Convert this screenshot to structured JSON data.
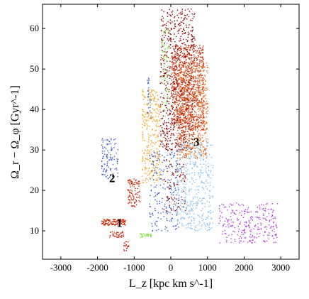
{
  "chart_data": {
    "type": "scatter",
    "title": "",
    "xlabel": "L_z [kpc km s^-1]",
    "ylabel": "Ω_r − Ω_φ [Gyr^-1]",
    "xlim": [
      -3500,
      3500
    ],
    "ylim": [
      3,
      66
    ],
    "xticks": [
      -3000,
      -2000,
      -1000,
      0,
      1000,
      2000,
      3000
    ],
    "yticks": [
      10,
      20,
      30,
      40,
      50,
      60
    ],
    "grid": false,
    "legend": "none",
    "annotations": [
      {
        "text": "1",
        "x": -1400,
        "y": 11
      },
      {
        "text": "2",
        "x": -1600,
        "y": 22
      },
      {
        "text": "3",
        "x": 700,
        "y": 31
      }
    ],
    "series": [
      {
        "color": "#8b0000",
        "clusters": [
          {
            "x": [
              -300,
              650
            ],
            "y": [
              30,
              65
            ],
            "n": 700
          },
          {
            "x": [
              -200,
              400
            ],
            "y": [
              15,
              40
            ],
            "n": 150
          }
        ]
      },
      {
        "color": "#cc2200",
        "clusters": [
          {
            "x": [
              0,
              900
            ],
            "y": [
              35,
              56
            ],
            "n": 700
          },
          {
            "x": [
              -1200,
              -850
            ],
            "y": [
              16,
              23
            ],
            "n": 100
          },
          {
            "x": [
              -1900,
              -1250
            ],
            "y": [
              11.5,
              13
            ],
            "n": 120
          },
          {
            "x": [
              -1700,
              -1300
            ],
            "y": [
              8.5,
              10
            ],
            "n": 40
          },
          {
            "x": [
              -1300,
              -1150
            ],
            "y": [
              4.5,
              7.5
            ],
            "n": 20
          }
        ]
      },
      {
        "color": "#ee6a1a",
        "clusters": [
          {
            "x": [
              150,
              1000
            ],
            "y": [
              28,
              52
            ],
            "n": 600
          }
        ]
      },
      {
        "color": "#f5a020",
        "clusters": [
          {
            "x": [
              -800,
              -300
            ],
            "y": [
              22,
              45
            ],
            "n": 300
          }
        ]
      },
      {
        "color": "#3a5ccc",
        "clusters": [
          {
            "x": [
              -1900,
              -1450
            ],
            "y": [
              23,
              33
            ],
            "n": 110
          },
          {
            "x": [
              -600,
              200
            ],
            "y": [
              10,
              30
            ],
            "n": 200
          },
          {
            "x": [
              -650,
              -550
            ],
            "y": [
              38,
              48
            ],
            "n": 25
          }
        ]
      },
      {
        "color": "#7fbff5",
        "clusters": [
          {
            "x": [
              150,
              1150
            ],
            "y": [
              10,
              32
            ],
            "n": 400
          }
        ]
      },
      {
        "color": "#b23adf",
        "clusters": [
          {
            "x": [
              1300,
              2900
            ],
            "y": [
              7,
              17
            ],
            "n": 260
          }
        ]
      },
      {
        "color": "#7fe23a",
        "clusters": [
          {
            "x": [
              -850,
              -550
            ],
            "y": [
              8.5,
              9.5
            ],
            "n": 30
          },
          {
            "x": [
              -250,
              -50
            ],
            "y": [
              38,
              60
            ],
            "n": 60
          }
        ]
      }
    ]
  }
}
